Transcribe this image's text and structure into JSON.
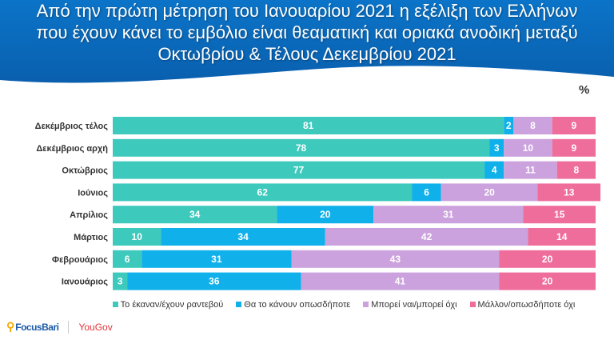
{
  "title_lines": [
    "Από την πρώτη μέτρηση του Ιανουαρίου 2021 η εξέλιξη των Ελλήνων",
    "που έχουν κάνει το εμβόλιο είναι θεαματική και οριακά ανοδική μεταξύ",
    "Οκτωβρίου & Τέλους Δεκεμβρίου 2021"
  ],
  "unit": "%",
  "logos": {
    "focusbari": "FocusBari",
    "yougov": "YouGov"
  },
  "chart_data": {
    "type": "bar",
    "orientation": "horizontal-stacked-100",
    "categories": [
      "Δεκέμβριος τέλος",
      "Δεκέμβριος αρχή",
      "Οκτώβριος",
      "Ιούνιος",
      "Απρίλιος",
      "Μάρτιος",
      "Φεβρουάριος",
      "Ιανουάριος"
    ],
    "series": [
      {
        "name": "Το έκαναν/έχουν ραντεβού",
        "color": "#3ec9bd",
        "values": [
          81,
          78,
          77,
          62,
          34,
          10,
          6,
          3
        ]
      },
      {
        "name": "Θα το κάνουν οπωσδήποτε",
        "color": "#10b0ea",
        "values": [
          2,
          3,
          4,
          6,
          20,
          34,
          31,
          36
        ]
      },
      {
        "name": "Μπορεί ναι/μπορεί όχι",
        "color": "#cba2dd",
        "values": [
          8,
          10,
          11,
          20,
          31,
          42,
          43,
          41
        ]
      },
      {
        "name": "Μάλλον/οπωσδήποτε όχι",
        "color": "#ef6d9b",
        "values": [
          9,
          9,
          8,
          13,
          15,
          14,
          20,
          20
        ]
      }
    ],
    "xlim": [
      0,
      100
    ],
    "grid": false,
    "legend": "bottom"
  }
}
